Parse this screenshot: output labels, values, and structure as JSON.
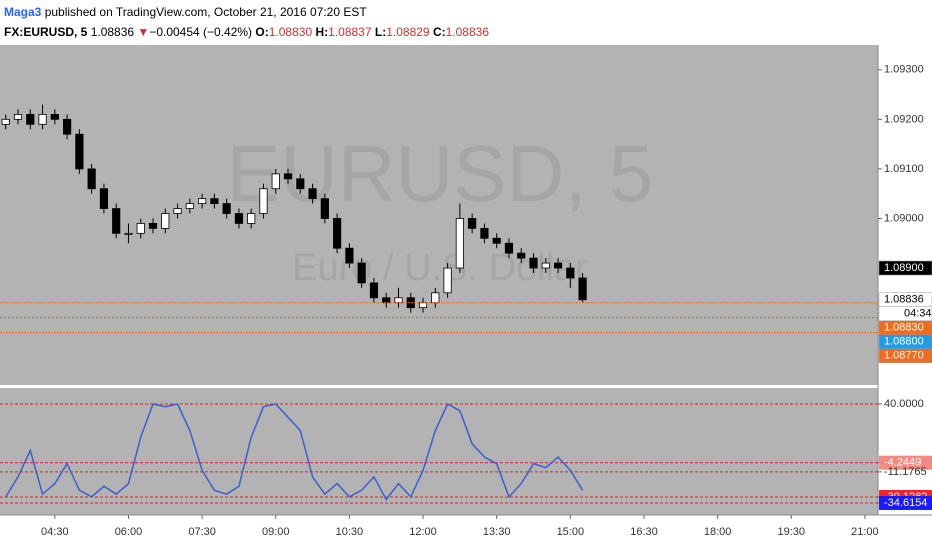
{
  "header": {
    "author": "Maga3",
    "published": "published on TradingView.com, October 21, 2016 07:20 EST",
    "symbol": "FX:EURUSD, 5",
    "last": "1.08836",
    "arrow": "▼",
    "change": "−0.00454 (−0.42%)",
    "o_label": "O:",
    "o": "1.08830",
    "h_label": "H:",
    "h": "1.08837",
    "l_label": "L:",
    "l": "1.08829",
    "c_label": "C:",
    "c": "1.08836"
  },
  "chart_data": [
    {
      "type": "candlestick",
      "watermark": "EURUSD, 5",
      "watermark_sub": "Euro / U.S. Dollar",
      "xlim": [
        "03:23",
        "21:16"
      ],
      "xticks": [
        "04:30",
        "06:00",
        "07:30",
        "09:00",
        "10:30",
        "12:00",
        "13:30",
        "15:00",
        "16:30",
        "18:00",
        "19:30",
        "21:00"
      ],
      "ylim": [
        1.08664,
        1.0935
      ],
      "yticks": [
        {
          "value": 1.093,
          "label": "1.09300"
        },
        {
          "value": 1.092,
          "label": "1.09200"
        },
        {
          "value": 1.091,
          "label": "1.09100"
        },
        {
          "value": 1.09,
          "label": "1.09000"
        }
      ],
      "up_color": "#ffffff",
      "down_color": "#000000",
      "price_markers": [
        {
          "value": 1.089,
          "label": "1.08900",
          "color": "#000000",
          "text_color": "#ffffff"
        },
        {
          "value": 1.08836,
          "label": "1.08836",
          "color": "#ffffff",
          "text_color": "#000000"
        },
        {
          "value": 1.0883,
          "label": "1.08830",
          "color": "#f26b1d",
          "text_color": "#ffffff"
        },
        {
          "value": 1.088,
          "label": "1.08800",
          "color": "#1e9be9",
          "text_color": "#ffffff"
        },
        {
          "value": 1.0877,
          "label": "1.08770",
          "color": "#f26b1d",
          "text_color": "#ffffff"
        }
      ],
      "countdown": "04:34",
      "x": [
        "03:30",
        "03:45",
        "04:00",
        "04:15",
        "04:30",
        "04:45",
        "05:00",
        "05:15",
        "05:30",
        "05:45",
        "06:00",
        "06:15",
        "06:30",
        "06:45",
        "07:00",
        "07:15",
        "07:30",
        "07:45",
        "08:00",
        "08:15",
        "08:30",
        "08:45",
        "09:00",
        "09:15",
        "09:30",
        "09:45",
        "10:00",
        "10:15",
        "10:30",
        "10:45",
        "11:00",
        "11:15",
        "11:30",
        "11:45",
        "12:00",
        "12:15",
        "12:30",
        "12:45",
        "13:00",
        "13:15",
        "13:30",
        "13:45",
        "14:00",
        "14:15",
        "14:30",
        "14:45",
        "15:00",
        "15:15"
      ],
      "ohlc": [
        [
          1.0919,
          1.0921,
          1.0918,
          1.092
        ],
        [
          1.092,
          1.0922,
          1.0919,
          1.0921
        ],
        [
          1.0921,
          1.0922,
          1.0918,
          1.0919
        ],
        [
          1.0919,
          1.0923,
          1.0918,
          1.0921
        ],
        [
          1.0921,
          1.0922,
          1.0919,
          1.092
        ],
        [
          1.092,
          1.0921,
          1.0916,
          1.0917
        ],
        [
          1.0917,
          1.0918,
          1.0909,
          1.091
        ],
        [
          1.091,
          1.0911,
          1.0905,
          1.0906
        ],
        [
          1.0906,
          1.0907,
          1.0901,
          1.0902
        ],
        [
          1.0902,
          1.0903,
          1.0896,
          1.0897
        ],
        [
          1.0897,
          1.0899,
          1.0895,
          1.0897
        ],
        [
          1.0897,
          1.09,
          1.0896,
          1.0899
        ],
        [
          1.0899,
          1.09,
          1.0897,
          1.0898
        ],
        [
          1.0898,
          1.0902,
          1.0897,
          1.0901
        ],
        [
          1.0901,
          1.0903,
          1.09,
          1.0902
        ],
        [
          1.0902,
          1.0904,
          1.0901,
          1.0903
        ],
        [
          1.0903,
          1.0905,
          1.0902,
          1.0904
        ],
        [
          1.0904,
          1.0905,
          1.0902,
          1.0903
        ],
        [
          1.0903,
          1.0904,
          1.09,
          1.0901
        ],
        [
          1.0901,
          1.0902,
          1.0898,
          1.0899
        ],
        [
          1.0899,
          1.0902,
          1.0898,
          1.0901
        ],
        [
          1.0901,
          1.0907,
          1.09,
          1.0906
        ],
        [
          1.0906,
          1.091,
          1.0905,
          1.0909
        ],
        [
          1.0909,
          1.091,
          1.0907,
          1.0908
        ],
        [
          1.0908,
          1.0909,
          1.0905,
          1.0906
        ],
        [
          1.0906,
          1.0907,
          1.0903,
          1.0904
        ],
        [
          1.0904,
          1.0905,
          1.0899,
          1.09
        ],
        [
          1.09,
          1.0901,
          1.0893,
          1.0894
        ],
        [
          1.0894,
          1.0895,
          1.089,
          1.0891
        ],
        [
          1.0891,
          1.0892,
          1.0886,
          1.0887
        ],
        [
          1.0887,
          1.0888,
          1.0883,
          1.0884
        ],
        [
          1.0884,
          1.0885,
          1.0882,
          1.0883
        ],
        [
          1.0883,
          1.0886,
          1.0882,
          1.0884
        ],
        [
          1.0884,
          1.0885,
          1.0881,
          1.0882
        ],
        [
          1.0882,
          1.0884,
          1.0881,
          1.0883
        ],
        [
          1.0883,
          1.0886,
          1.0882,
          1.0885
        ],
        [
          1.0885,
          1.0891,
          1.0884,
          1.089
        ],
        [
          1.089,
          1.0903,
          1.0889,
          1.09
        ],
        [
          1.09,
          1.0901,
          1.0897,
          1.0898
        ],
        [
          1.0898,
          1.0899,
          1.0895,
          1.0896
        ],
        [
          1.0896,
          1.0897,
          1.0894,
          1.0895
        ],
        [
          1.0895,
          1.0896,
          1.0892,
          1.0893
        ],
        [
          1.0893,
          1.0894,
          1.0891,
          1.0892
        ],
        [
          1.0892,
          1.0893,
          1.0889,
          1.089
        ],
        [
          1.089,
          1.0892,
          1.0889,
          1.0891
        ],
        [
          1.0891,
          1.0892,
          1.0889,
          1.089
        ],
        [
          1.089,
          1.0891,
          1.0886,
          1.0888
        ],
        [
          1.0888,
          1.0889,
          1.0883,
          1.08836
        ]
      ]
    },
    {
      "type": "line",
      "xlim": [
        "03:23",
        "21:16"
      ],
      "ylim": [
        -43.7,
        52.1
      ],
      "yticks": [
        {
          "value": 40,
          "label": "40.0000"
        },
        -4.2449,
        -11.1765,
        -30.1282,
        -34.6154
      ],
      "tick_colors": [
        "#ffffff",
        "#f28b82",
        "#ffffff",
        "#ff2020",
        "#1a1aff"
      ],
      "level_color": "#d92020",
      "x": [
        "03:30",
        "03:45",
        "04:00",
        "04:15",
        "04:30",
        "04:45",
        "05:00",
        "05:15",
        "05:30",
        "05:45",
        "06:00",
        "06:15",
        "06:30",
        "06:45",
        "07:00",
        "07:15",
        "07:30",
        "07:45",
        "08:00",
        "08:15",
        "08:30",
        "08:45",
        "09:00",
        "09:15",
        "09:30",
        "09:45",
        "10:00",
        "10:15",
        "10:30",
        "10:45",
        "11:00",
        "11:15",
        "11:30",
        "11:45",
        "12:00",
        "12:15",
        "12:30",
        "12:45",
        "13:00",
        "13:15",
        "13:30",
        "13:45",
        "14:00",
        "14:15",
        "14:30",
        "14:45",
        "15:00",
        "15:15"
      ],
      "series": [
        {
          "color": "#3a5fd0",
          "values": [
            -30,
            -15,
            5,
            -28,
            -20,
            -5,
            -25,
            -30,
            -22,
            -28,
            -20,
            15,
            40,
            38,
            40,
            20,
            -10,
            -25,
            -28,
            -22,
            15,
            38,
            40,
            30,
            20,
            -15,
            -28,
            -20,
            -30,
            -25,
            -15,
            -32,
            -20,
            -30,
            -10,
            20,
            40,
            35,
            10,
            0,
            -5,
            -30,
            -20,
            -5,
            -8,
            0,
            -10,
            -25
          ]
        }
      ]
    }
  ]
}
